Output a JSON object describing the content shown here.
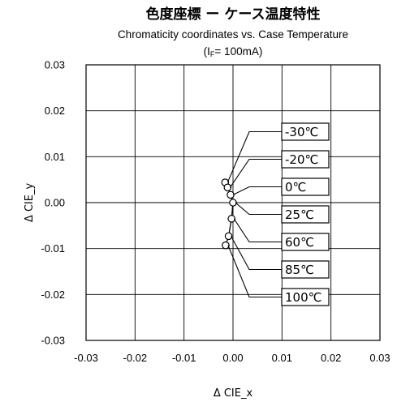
{
  "chart_data": {
    "type": "scatter",
    "title": "色度座標 ー ケース温度特性",
    "subtitle": "Chromaticity coordinates vs. Case Temperature",
    "condition": {
      "prefix": "(I",
      "sub": "F",
      "suffix": "= 100mA)"
    },
    "xlabel": "Δ CIE_x",
    "ylabel": "Δ CIE_y",
    "xlim": [
      -0.03,
      0.03
    ],
    "ylim": [
      -0.03,
      0.03
    ],
    "xticks": [
      -0.03,
      -0.02,
      -0.01,
      0.0,
      0.01,
      0.02,
      0.03
    ],
    "yticks": [
      -0.03,
      -0.02,
      -0.01,
      0.0,
      0.01,
      0.02,
      0.03
    ],
    "xtick_labels": [
      "-0.03",
      "-0.02",
      "-0.01",
      "0.00",
      "0.01",
      "0.02",
      "0.03"
    ],
    "ytick_labels": [
      "-0.03",
      "-0.02",
      "-0.01",
      "0.00",
      "0.01",
      "0.02",
      "0.03"
    ],
    "grid": true,
    "points": [
      {
        "label": "-30℃",
        "x": -0.0016,
        "y": 0.0044
      },
      {
        "label": "-20℃",
        "x": -0.0011,
        "y": 0.0033
      },
      {
        "label": "0℃",
        "x": -0.0005,
        "y": 0.0017
      },
      {
        "label": "25℃",
        "x": 0.0,
        "y": 0.0
      },
      {
        "label": "60℃",
        "x": -0.0003,
        "y": -0.0035
      },
      {
        "label": "85℃",
        "x": -0.0009,
        "y": -0.0073
      },
      {
        "label": "100℃",
        "x": -0.0015,
        "y": -0.0093
      }
    ]
  }
}
